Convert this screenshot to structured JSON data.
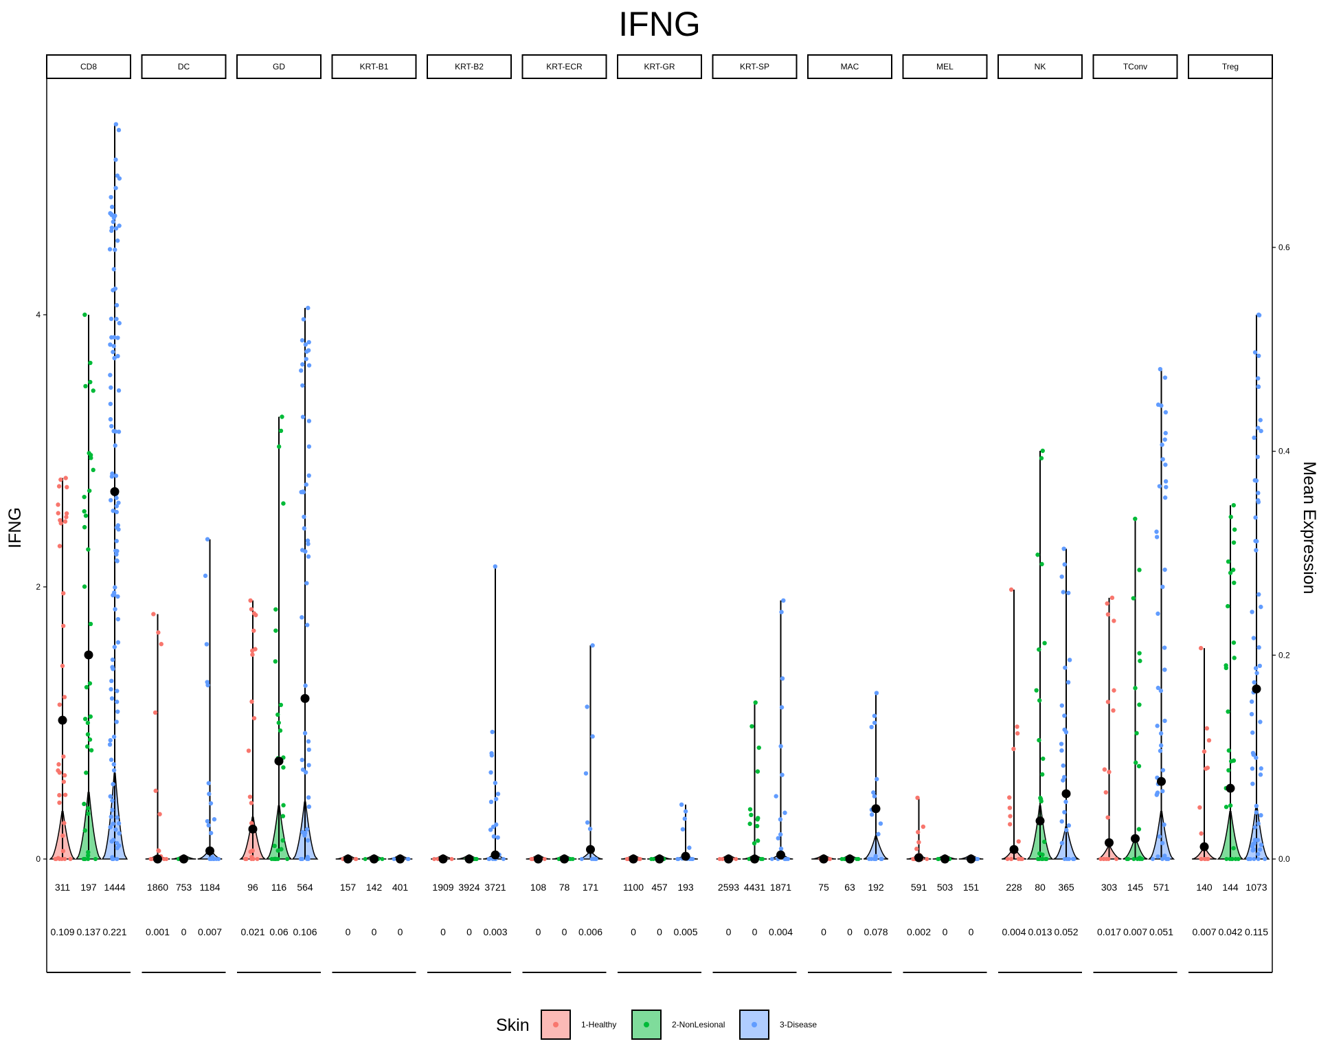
{
  "chart_data": {
    "type": "violin",
    "title": "IFNG",
    "ylabel": "IFNG",
    "y2label": "Mean Expression",
    "ylim": [
      -0.2,
      5.55
    ],
    "yticks": [
      0,
      2,
      4
    ],
    "ytick_labels": [
      "0",
      "2",
      "4"
    ],
    "y2lim": [
      0,
      0.6
    ],
    "y2ticks": [
      0.0,
      0.2,
      0.4,
      0.6
    ],
    "y2tick_labels": [
      "0.0",
      "0.2",
      "0.4",
      "0.6"
    ],
    "legend": {
      "title": "Skin",
      "placement": "bottom",
      "entries": [
        {
          "label": "1-Healthy",
          "color": "#F8766D"
        },
        {
          "label": "2-NonLesional",
          "color": "#00BA38"
        },
        {
          "label": "3-Disease",
          "color": "#619CFF"
        }
      ]
    },
    "group_colors": [
      "#F8766D",
      "#00BA38",
      "#619CFF"
    ],
    "panels": [
      {
        "label": "CD8",
        "counts": [
          "311",
          "197",
          "1444"
        ],
        "means": [
          "0.109",
          "0.137",
          "0.221"
        ],
        "max": [
          2.8,
          4.0,
          5.4
        ],
        "mean_pt": [
          1.02,
          1.5,
          2.7
        ],
        "density": [
          0.25,
          0.35,
          0.45
        ]
      },
      {
        "label": "DC",
        "counts": [
          "1860",
          "753",
          "1184"
        ],
        "means": [
          "0.001",
          "0",
          "0.007"
        ],
        "max": [
          1.8,
          0,
          2.35
        ],
        "mean_pt": [
          0.0,
          0.0,
          0.06
        ],
        "density": [
          0.02,
          0.02,
          0.05
        ]
      },
      {
        "label": "GD",
        "counts": [
          "96",
          "116",
          "564"
        ],
        "means": [
          "0.021",
          "0.06",
          "0.106"
        ],
        "max": [
          1.9,
          3.25,
          4.05
        ],
        "mean_pt": [
          0.22,
          0.72,
          1.18
        ],
        "density": [
          0.22,
          0.28,
          0.3
        ]
      },
      {
        "label": "KRT-B1",
        "counts": [
          "157",
          "142",
          "401"
        ],
        "means": [
          "0",
          "0",
          "0"
        ],
        "max": [
          0,
          0,
          0
        ],
        "mean_pt": [
          0,
          0,
          0
        ],
        "density": [
          0.01,
          0.01,
          0.01
        ]
      },
      {
        "label": "KRT-B2",
        "counts": [
          "1909",
          "3924",
          "3721"
        ],
        "means": [
          "0",
          "0",
          "0.003"
        ],
        "max": [
          0,
          0,
          2.15
        ],
        "mean_pt": [
          0,
          0,
          0.03
        ],
        "density": [
          0.01,
          0.01,
          0.03
        ]
      },
      {
        "label": "KRT-ECR",
        "counts": [
          "108",
          "78",
          "171"
        ],
        "means": [
          "0",
          "0",
          "0.006"
        ],
        "max": [
          0,
          0,
          1.57
        ],
        "mean_pt": [
          0,
          0,
          0.07
        ],
        "density": [
          0.01,
          0.01,
          0.04
        ]
      },
      {
        "label": "KRT-GR",
        "counts": [
          "1100",
          "457",
          "193"
        ],
        "means": [
          "0",
          "0",
          "0.005"
        ],
        "max": [
          0,
          0,
          0.4
        ],
        "mean_pt": [
          0,
          0,
          0.02
        ],
        "density": [
          0.01,
          0.01,
          0.02
        ]
      },
      {
        "label": "KRT-SP",
        "counts": [
          "2593",
          "4431",
          "1871"
        ],
        "means": [
          "0",
          "0",
          "0.004"
        ],
        "max": [
          0,
          1.15,
          1.9
        ],
        "mean_pt": [
          0,
          0,
          0.03
        ],
        "density": [
          0.01,
          0.02,
          0.03
        ]
      },
      {
        "label": "MAC",
        "counts": [
          "75",
          "63",
          "192"
        ],
        "means": [
          "0",
          "0",
          "0.078"
        ],
        "max": [
          0,
          0,
          1.22
        ],
        "mean_pt": [
          0,
          0,
          0.37
        ],
        "density": [
          0.01,
          0.01,
          0.12
        ]
      },
      {
        "label": "MEL",
        "counts": [
          "591",
          "503",
          "151"
        ],
        "means": [
          "0.002",
          "0",
          "0"
        ],
        "max": [
          0.45,
          0,
          0
        ],
        "mean_pt": [
          0.01,
          0,
          0
        ],
        "density": [
          0.02,
          0.01,
          0.01
        ]
      },
      {
        "label": "NK",
        "counts": [
          "228",
          "80",
          "365"
        ],
        "means": [
          "0.004",
          "0.013",
          "0.052"
        ],
        "max": [
          1.98,
          3.0,
          2.28
        ],
        "mean_pt": [
          0.07,
          0.28,
          0.48
        ],
        "density": [
          0.06,
          0.28,
          0.17
        ]
      },
      {
        "label": "TConv",
        "counts": [
          "303",
          "145",
          "571"
        ],
        "means": [
          "0.017",
          "0.007",
          "0.051"
        ],
        "max": [
          1.92,
          2.5,
          3.6
        ],
        "mean_pt": [
          0.12,
          0.15,
          0.57
        ],
        "density": [
          0.07,
          0.11,
          0.25
        ]
      },
      {
        "label": "Treg",
        "counts": [
          "140",
          "144",
          "1073"
        ],
        "means": [
          "0.007",
          "0.042",
          "0.115"
        ],
        "max": [
          1.55,
          2.6,
          4.0
        ],
        "mean_pt": [
          0.09,
          0.52,
          1.25
        ],
        "density": [
          0.06,
          0.25,
          0.28
        ]
      }
    ]
  }
}
